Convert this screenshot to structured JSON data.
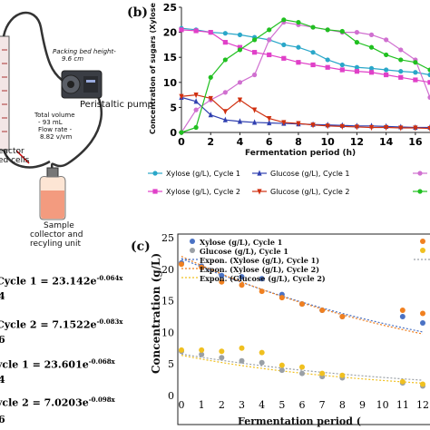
{
  "panel_a": {
    "labels": {
      "packing": "Packing bed height-",
      "packing2": "9.6 cm",
      "pump": "Peristaltic pump",
      "volume1": "Total volume",
      "volume2": "- 93 mL",
      "volume3": "Flow rate -",
      "volume4": "8.82 v/vm",
      "reactor1": "eactor",
      "reactor2": "ed cells",
      "collector1": "Sample",
      "collector2": "collector and",
      "collector3": "recyling unit"
    },
    "equations": [
      {
        "prefix": "Cycle 1 = 23.142e",
        "exp": "-0.064x",
        "r2": "4"
      },
      {
        "prefix": "Cycle 2 = 7.1522e",
        "exp": "-0.083x",
        "r2": "6"
      },
      {
        "prefix": "ycle 1 = 23.601e",
        "exp": "-0.068x",
        "r2": "4"
      },
      {
        "prefix": "ycle 2 = 7.0203e",
        "exp": "-0.098x",
        "r2": "6"
      }
    ]
  },
  "chart_data": [
    {
      "panel": "(b)",
      "type": "line",
      "xlabel": "Fermentation period (h)",
      "ylabel": "Concentration of sugars (Xylose and Glucose), g/L",
      "xlim": [
        0,
        17
      ],
      "ylim": [
        0,
        25
      ],
      "xticks": [
        "0",
        "2",
        "4",
        "6",
        "8",
        "10",
        "12",
        "14",
        "16"
      ],
      "yticks": [
        "0",
        "5",
        "10",
        "15",
        "20",
        "25"
      ],
      "series": [
        {
          "name": "Xylose (g/L), Cycle 1",
          "color": "#2aa7c9",
          "marker": "circle",
          "x": [
            0,
            1,
            2,
            3,
            4,
            5,
            6,
            7,
            8,
            9,
            10,
            11,
            12,
            13,
            14,
            15,
            16,
            17
          ],
          "y": [
            20.8,
            20.5,
            20.0,
            19.8,
            19.5,
            19.0,
            18.5,
            17.5,
            17.0,
            16.0,
            14.5,
            13.5,
            13.0,
            12.8,
            12.5,
            12.2,
            12.0,
            11.5
          ]
        },
        {
          "name": "Glucose (g/L), Cycle 1",
          "color": "#3040b0",
          "marker": "triangle",
          "x": [
            0,
            1,
            2,
            3,
            4,
            5,
            6,
            7,
            8,
            9,
            10,
            11,
            12,
            13,
            14,
            15,
            16,
            17
          ],
          "y": [
            7.0,
            6.2,
            3.5,
            2.5,
            2.2,
            2.0,
            1.9,
            1.8,
            1.7,
            1.6,
            1.5,
            1.4,
            1.3,
            1.3,
            1.2,
            1.1,
            1.0,
            1.0
          ]
        },
        {
          "name": "",
          "color": "#d070d0",
          "marker": "circle",
          "x": [
            0,
            1,
            2,
            3,
            4,
            5,
            6,
            7,
            8,
            9,
            10,
            11,
            12,
            13,
            14,
            15,
            16,
            17
          ],
          "y": [
            0,
            4.5,
            6.5,
            8.0,
            10.0,
            11.5,
            18.5,
            22.0,
            21.5,
            21.0,
            20.5,
            20.0,
            20.0,
            19.5,
            18.5,
            16.5,
            14.5,
            7.0
          ]
        },
        {
          "name": "Xylose (g/L), Cycle 2",
          "color": "#e040c8",
          "marker": "square",
          "x": [
            0,
            1,
            2,
            3,
            4,
            5,
            6,
            7,
            8,
            9,
            10,
            11,
            12,
            13,
            14,
            15,
            16,
            17
          ],
          "y": [
            20.5,
            20.3,
            20.0,
            18.0,
            17.0,
            16.0,
            15.5,
            14.8,
            14.0,
            13.5,
            13.0,
            12.5,
            12.2,
            12.0,
            11.5,
            11.0,
            10.5,
            10.0
          ]
        },
        {
          "name": "Glucose (g/L), Cycle 2",
          "color": "#d03010",
          "marker": "triangle-down",
          "x": [
            0,
            1,
            2,
            3,
            4,
            5,
            6,
            7,
            8,
            9,
            10,
            11,
            12,
            13,
            14,
            15,
            16,
            17
          ],
          "y": [
            7.2,
            7.5,
            6.8,
            4.2,
            6.5,
            4.5,
            2.8,
            2.0,
            1.8,
            1.5,
            1.3,
            1.2,
            1.1,
            1.0,
            1.0,
            0.9,
            0.9,
            0.8
          ]
        },
        {
          "name": "",
          "color": "#20c020",
          "marker": "circle",
          "x": [
            0,
            1,
            2,
            3,
            4,
            5,
            6,
            7,
            8,
            9,
            10,
            11,
            12,
            13,
            14,
            15,
            16,
            17
          ],
          "y": [
            0,
            1.0,
            11.0,
            14.5,
            16.5,
            18.5,
            20.5,
            22.5,
            22.0,
            21.0,
            20.5,
            20.2,
            18.0,
            17.0,
            15.5,
            14.5,
            14.0,
            12.5
          ]
        }
      ]
    },
    {
      "panel": "(c)",
      "type": "scatter",
      "xlabel": "Fermentation period (",
      "ylabel": "Concentration (g/L)",
      "xlim": [
        0,
        12
      ],
      "ylim": [
        0,
        25
      ],
      "xticks": [
        "0",
        "1",
        "2",
        "3",
        "4",
        "5",
        "6",
        "7",
        "8",
        "9",
        "10",
        "11",
        "12"
      ],
      "yticks": [
        "0",
        "5",
        "10",
        "15",
        "20",
        "25"
      ],
      "series": [
        {
          "name": "Xylose (g/L), Cycle 1",
          "color": "#4a72c4",
          "marker": "dot",
          "x": [
            0,
            1,
            2,
            3,
            4,
            5,
            6,
            7,
            8,
            11,
            12
          ],
          "y": [
            21.0,
            20.5,
            19.0,
            18.8,
            18.5,
            16.0,
            14.5,
            13.5,
            12.5,
            12.5,
            11.5
          ]
        },
        {
          "name": "Glucose (g/L), Cycle 1",
          "color": "#9aa0a6",
          "marker": "dot",
          "x": [
            0,
            1,
            2,
            3,
            4,
            5,
            6,
            7,
            8,
            11,
            12
          ],
          "y": [
            7.0,
            6.5,
            6.0,
            5.5,
            5.2,
            4.0,
            3.5,
            3.0,
            2.8,
            2.0,
            1.5
          ]
        },
        {
          "name": "",
          "color": "#f08020",
          "marker": "dot",
          "x": [
            0,
            1,
            2,
            3,
            4,
            5,
            6,
            7,
            8,
            11,
            12
          ],
          "y": [
            20.8,
            20.3,
            18.0,
            17.5,
            16.5,
            15.5,
            14.5,
            13.5,
            12.5,
            13.5,
            13.0
          ]
        },
        {
          "name": "",
          "color": "#f0c020",
          "marker": "dot",
          "x": [
            0,
            1,
            2,
            3,
            4,
            5,
            6,
            7,
            8,
            11,
            12
          ],
          "y": [
            7.2,
            7.2,
            7.0,
            7.5,
            6.8,
            4.8,
            4.5,
            3.5,
            3.2,
            2.2,
            1.8
          ]
        }
      ],
      "trendlines": [
        {
          "name": "Expon. (Xylose (g/L), Cycle 1)",
          "color": "#4a72c4",
          "a": 23.142,
          "b": -0.064
        },
        {
          "name": "Expon. (Xylose (g/L), Cycle 2)",
          "color": "#f08020",
          "a": 23.601,
          "b": -0.068
        },
        {
          "name": "Expon. (Glucose (g/L), Cycle 2)",
          "color": "#f0c020",
          "a": 7.0203,
          "b": -0.098
        },
        {
          "name": "",
          "color": "#9aa0a6",
          "a": 7.1522,
          "b": -0.083
        }
      ],
      "legend": [
        {
          "label": "Xylose (g/L), Cycle 1",
          "color": "#4a72c4",
          "kind": "dot"
        },
        {
          "label": "Glucose (g/L), Cycle 1",
          "color": "#9aa0a6",
          "kind": "dot"
        },
        {
          "label": "Expon. (Xylose (g/L), Cycle 1)",
          "color": "#4a72c4",
          "kind": "dash"
        },
        {
          "label": "Expon. (Xylose (g/L), Cycle 2)",
          "color": "#f08020",
          "kind": "dash"
        },
        {
          "label": "Expon. (Glucose (g/L), Cycle 2)",
          "color": "#f0c020",
          "kind": "dash"
        }
      ]
    }
  ]
}
